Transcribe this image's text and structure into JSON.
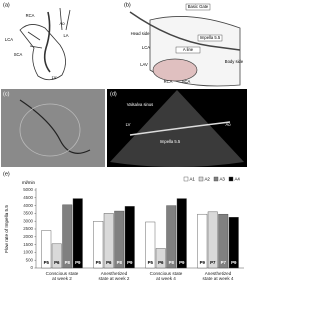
{
  "panels": [
    {
      "label": "(a)",
      "texts": [
        "RCA",
        "LCA",
        "SCA",
        "Ao",
        "LA",
        "LV"
      ]
    },
    {
      "label": "(b)",
      "texts": [
        "Basic Gate",
        "Impella 5.5",
        "Head side",
        "A line",
        "Body side",
        "LCA",
        "LAV",
        "RCA",
        "SCA"
      ]
    },
    {
      "label": "(c)",
      "texts": []
    },
    {
      "label": "(d)",
      "texts": [
        "Valsalva sinus",
        "LV",
        "Ao",
        "Impella 5.5"
      ]
    }
  ],
  "chart_data": {
    "type": "bar",
    "label": "(e)",
    "y_label": "Flow rate of Impella 5.5",
    "y_unit": "ml/min",
    "categories": [
      "Conscious state at week 2",
      "Anesthetized state at week 2",
      "Conscious state at week 4",
      "Anesthetized state at week 4"
    ],
    "series": [
      {
        "name": "A1",
        "color": "#ffffff",
        "values": [
          2400,
          3000,
          2950,
          3450
        ],
        "bar_labels": [
          "P5",
          "P5",
          "P5",
          "P9"
        ]
      },
      {
        "name": "A2",
        "color": "#d9d9d9",
        "values": [
          1550,
          3500,
          1250,
          3600
        ],
        "bar_labels": [
          "P6",
          "P6",
          "P6",
          "P7"
        ]
      },
      {
        "name": "A3",
        "color": "#808080",
        "values": [
          4050,
          3650,
          4000,
          3450
        ],
        "bar_labels": [
          "P8",
          "P8",
          "P8",
          "P7"
        ]
      },
      {
        "name": "A4",
        "color": "#000000",
        "values": [
          4450,
          3950,
          4450,
          3250
        ],
        "bar_labels": [
          "P9",
          "P9",
          "P9",
          "P9"
        ]
      }
    ],
    "ylim": [
      0,
      5000
    ],
    "yticks": [
      0,
      500,
      1000,
      1500,
      2000,
      2500,
      3000,
      3500,
      4000,
      4500,
      5000
    ],
    "grid": false,
    "legend": "top-right"
  }
}
